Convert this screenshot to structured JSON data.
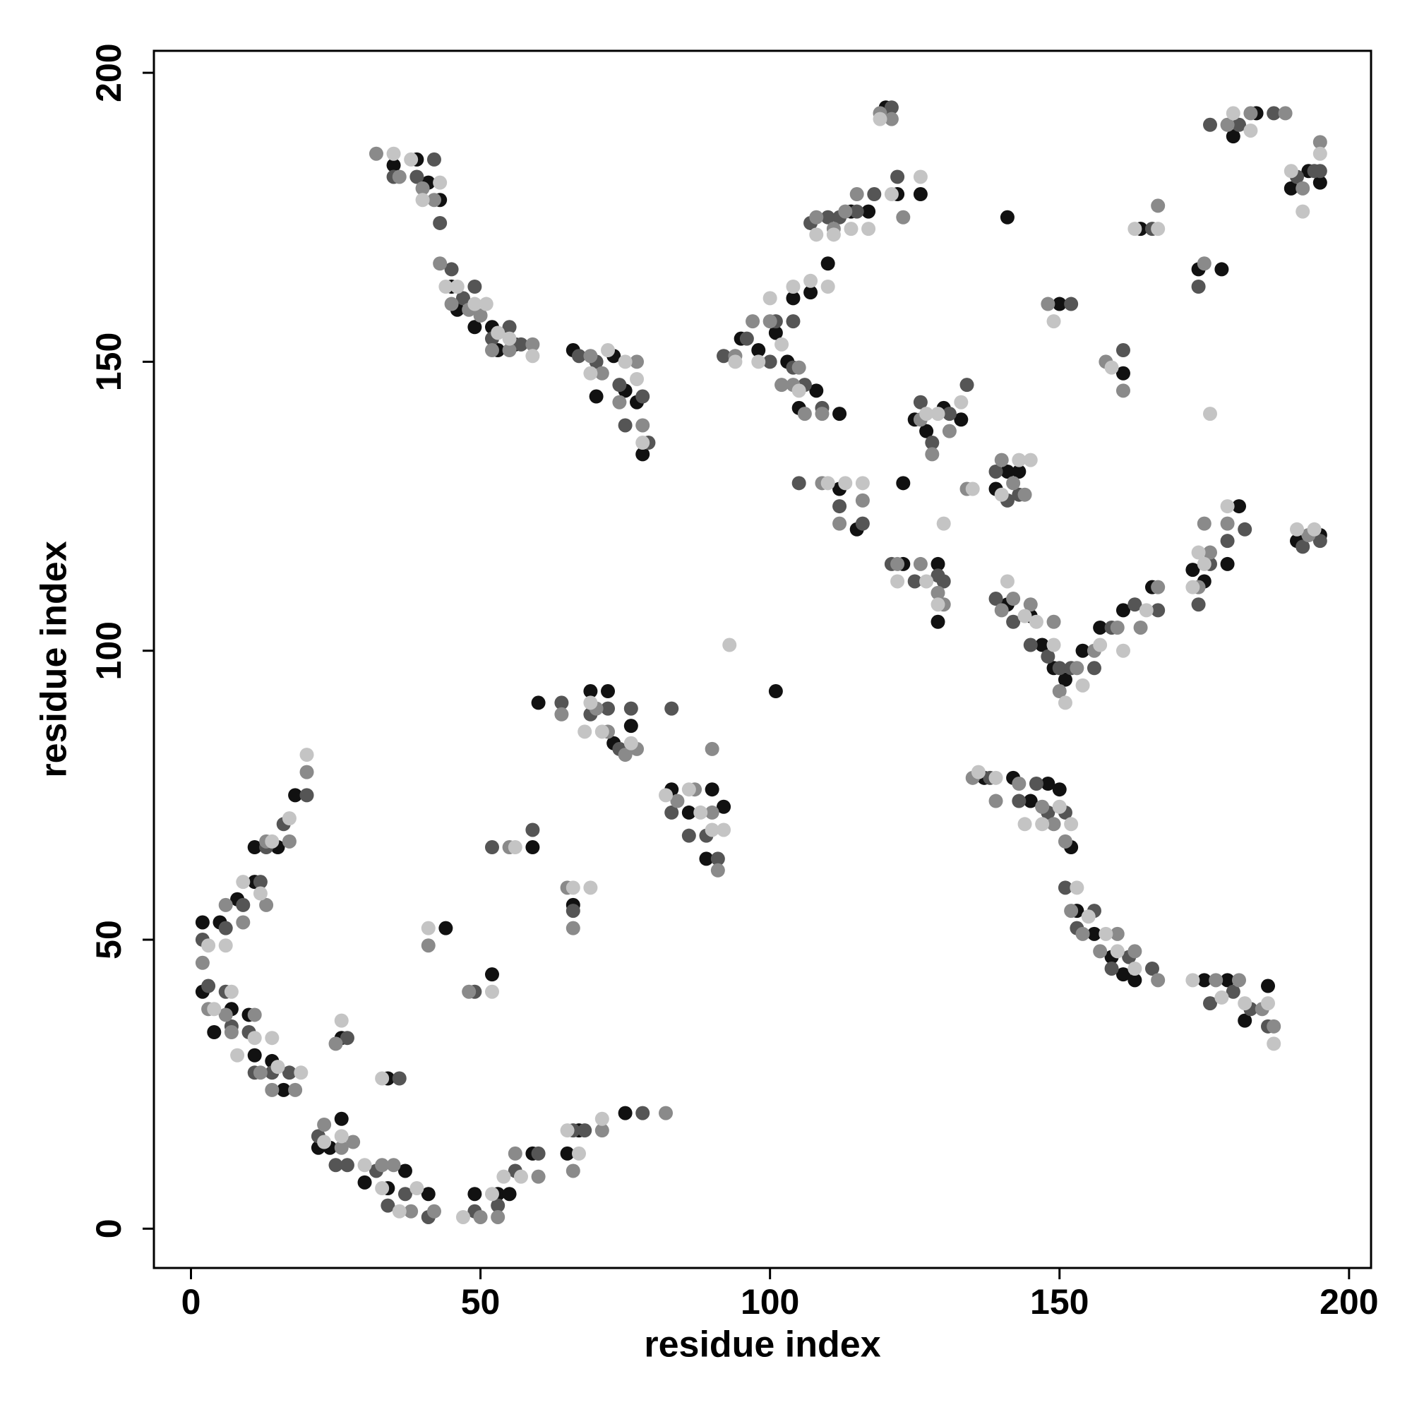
{
  "chart_data": {
    "type": "scatter",
    "xlabel": "residue index",
    "ylabel": "residue index",
    "xlim": [
      -6.4,
      203.8
    ],
    "ylim": [
      -6.8,
      203.8
    ],
    "xticks": [
      0,
      50,
      100,
      150,
      200
    ],
    "yticks": [
      0,
      50,
      100,
      150,
      200
    ],
    "series": [
      {
        "color": "#111111",
        "x": [
          2,
          5,
          8,
          11,
          11,
          15,
          18,
          2,
          4,
          7,
          10,
          11,
          14,
          16,
          22,
          24,
          26,
          30,
          34,
          37,
          41,
          49,
          53,
          55,
          59,
          65,
          67,
          75,
          26,
          34,
          44,
          52,
          59,
          66,
          60,
          69,
          72,
          73,
          76,
          83,
          86,
          89,
          90,
          92,
          101,
          95,
          98,
          101,
          103,
          104,
          105,
          107,
          108,
          110,
          112,
          114,
          117,
          120,
          122,
          126,
          112,
          115,
          123,
          123,
          129,
          129,
          125,
          127,
          130,
          133,
          139,
          141,
          143,
          141,
          141,
          145,
          147,
          149,
          151,
          154,
          157,
          161,
          166,
          173,
          175,
          179,
          181,
          191,
          195,
          150,
          161,
          164,
          174,
          178,
          180,
          184,
          190,
          193,
          195,
          35,
          39,
          41,
          43,
          45,
          46,
          49,
          52,
          53,
          56,
          66,
          70,
          73,
          75,
          77,
          78,
          137,
          142,
          145,
          148,
          150,
          152,
          153,
          156,
          159,
          161,
          163,
          175,
          179,
          182,
          186
        ],
        "values": [
          53,
          53,
          57,
          60,
          66,
          66,
          75,
          41,
          34,
          38,
          37,
          30,
          29,
          24,
          14,
          14,
          19,
          8,
          7,
          10,
          6,
          6,
          6,
          6,
          13,
          13,
          17,
          20,
          33,
          26,
          52,
          44,
          66,
          56,
          91,
          93,
          93,
          84,
          87,
          76,
          72,
          64,
          76,
          73,
          93,
          154,
          152,
          155,
          150,
          161,
          142,
          162,
          145,
          167,
          141,
          176,
          176,
          194,
          179,
          179,
          128,
          121,
          129,
          115,
          115,
          105,
          140,
          138,
          142,
          140,
          128,
          131,
          131,
          175,
          108,
          106,
          101,
          97,
          95,
          100,
          104,
          107,
          111,
          114,
          112,
          115,
          125,
          119,
          120,
          160,
          148,
          173,
          166,
          166,
          189,
          193,
          180,
          183,
          181,
          184,
          185,
          181,
          178,
          163,
          159,
          156,
          156,
          152,
          153,
          152,
          144,
          151,
          145,
          143,
          134,
          78,
          78,
          74,
          77,
          76,
          66,
          55,
          51,
          47,
          44,
          43,
          43,
          43,
          36,
          42
        ]
      },
      {
        "color": "#555555",
        "x": [
          2,
          6,
          9,
          12,
          13,
          16,
          20,
          3,
          6,
          7,
          10,
          11,
          14,
          17,
          22,
          25,
          27,
          32,
          34,
          37,
          41,
          49,
          53,
          56,
          60,
          66,
          68,
          78,
          27,
          36,
          49,
          52,
          59,
          66,
          64,
          69,
          72,
          74,
          76,
          83,
          86,
          89,
          91,
          83,
          92,
          96,
          100,
          101,
          104,
          104,
          106,
          107,
          109,
          110,
          112,
          115,
          118,
          121,
          122,
          105,
          112,
          116,
          121,
          125,
          129,
          130,
          126,
          128,
          131,
          134,
          139,
          141,
          143,
          139,
          142,
          145,
          148,
          150,
          152,
          156,
          159,
          163,
          167,
          174,
          176,
          179,
          182,
          192,
          195,
          152,
          161,
          166,
          174,
          176,
          181,
          187,
          191,
          194,
          195,
          35,
          39,
          42,
          43,
          45,
          47,
          49,
          52,
          55,
          57,
          67,
          70,
          74,
          75,
          78,
          79,
          138,
          143,
          146,
          148,
          151,
          151,
          153,
          156,
          159,
          162,
          166,
          176,
          180,
          183,
          186
        ],
        "values": [
          50,
          52,
          56,
          60,
          66,
          70,
          75,
          42,
          41,
          35,
          34,
          27,
          27,
          27,
          16,
          11,
          11,
          10,
          4,
          6,
          2,
          3,
          4,
          10,
          13,
          17,
          17,
          20,
          33,
          26,
          41,
          66,
          69,
          55,
          91,
          89,
          90,
          83,
          90,
          72,
          68,
          68,
          64,
          90,
          151,
          154,
          150,
          157,
          149,
          157,
          146,
          174,
          142,
          175,
          175,
          176,
          179,
          194,
          182,
          129,
          125,
          122,
          115,
          112,
          113,
          112,
          143,
          136,
          141,
          146,
          131,
          126,
          127,
          109,
          105,
          101,
          99,
          97,
          97,
          97,
          104,
          108,
          107,
          108,
          115,
          119,
          121,
          118,
          119,
          160,
          152,
          173,
          163,
          191,
          191,
          193,
          182,
          183,
          183,
          182,
          182,
          185,
          174,
          166,
          161,
          163,
          154,
          156,
          153,
          151,
          150,
          146,
          139,
          144,
          136,
          78,
          74,
          77,
          72,
          72,
          59,
          52,
          55,
          45,
          47,
          45,
          39,
          41,
          38,
          35
        ]
      },
      {
        "color": "#8a8a8a",
        "x": [
          2,
          6,
          9,
          13,
          13,
          17,
          20,
          3,
          6,
          7,
          11,
          12,
          14,
          18,
          23,
          26,
          28,
          33,
          35,
          38,
          42,
          50,
          53,
          56,
          60,
          66,
          71,
          82,
          25,
          41,
          48,
          55,
          65,
          66,
          64,
          70,
          72,
          75,
          77,
          84,
          87,
          90,
          91,
          90,
          94,
          97,
          100,
          102,
          104,
          105,
          106,
          108,
          109,
          111,
          113,
          115,
          119,
          121,
          123,
          109,
          112,
          116,
          122,
          126,
          129,
          130,
          126,
          128,
          131,
          134,
          140,
          142,
          144,
          140,
          142,
          145,
          149,
          150,
          153,
          156,
          160,
          164,
          167,
          174,
          176,
          179,
          175,
          193,
          148,
          158,
          161,
          167,
          175,
          179,
          183,
          189,
          192,
          195,
          32,
          36,
          40,
          42,
          43,
          45,
          48,
          50,
          52,
          55,
          59,
          69,
          71,
          74,
          77,
          78,
          135,
          139,
          143,
          147,
          149,
          151,
          152,
          154,
          157,
          160,
          163,
          167,
          177,
          181,
          185,
          187
        ],
        "values": [
          46,
          56,
          53,
          56,
          67,
          67,
          79,
          38,
          37,
          34,
          37,
          27,
          24,
          24,
          18,
          14,
          15,
          11,
          11,
          3,
          3,
          2,
          2,
          13,
          9,
          10,
          17,
          20,
          32,
          49,
          41,
          66,
          59,
          52,
          89,
          90,
          86,
          82,
          83,
          74,
          76,
          72,
          62,
          83,
          151,
          157,
          157,
          146,
          146,
          149,
          141,
          175,
          141,
          173,
          176,
          179,
          193,
          192,
          175,
          129,
          122,
          126,
          115,
          115,
          110,
          108,
          140,
          134,
          138,
          128,
          133,
          129,
          127,
          107,
          109,
          108,
          105,
          93,
          97,
          100,
          104,
          104,
          111,
          111,
          117,
          122,
          122,
          120,
          160,
          150,
          145,
          177,
          167,
          191,
          193,
          193,
          180,
          188,
          186,
          182,
          180,
          178,
          167,
          160,
          159,
          158,
          152,
          152,
          153,
          151,
          148,
          143,
          150,
          139,
          78,
          74,
          77,
          73,
          70,
          67,
          55,
          51,
          48,
          51,
          48,
          43,
          43,
          43,
          38,
          35
        ]
      },
      {
        "color": "#c4c4c4",
        "x": [
          3,
          6,
          9,
          12,
          14,
          17,
          20,
          4,
          7,
          8,
          11,
          14,
          15,
          19,
          23,
          26,
          30,
          33,
          36,
          39,
          47,
          52,
          54,
          57,
          65,
          67,
          71,
          26,
          33,
          41,
          52,
          56,
          66,
          69,
          69,
          68,
          71,
          76,
          82,
          86,
          88,
          90,
          92,
          93,
          94,
          98,
          100,
          102,
          104,
          105,
          107,
          108,
          110,
          111,
          114,
          117,
          119,
          121,
          126,
          110,
          113,
          116,
          122,
          127,
          129,
          130,
          127,
          129,
          133,
          135,
          140,
          143,
          145,
          141,
          144,
          146,
          149,
          151,
          154,
          157,
          161,
          165,
          173,
          175,
          174,
          179,
          191,
          194,
          149,
          159,
          163,
          167,
          176,
          180,
          183,
          190,
          192,
          195,
          35,
          38,
          40,
          43,
          44,
          46,
          49,
          51,
          53,
          55,
          59,
          69,
          72,
          75,
          77,
          78,
          136,
          139,
          144,
          147,
          150,
          152,
          153,
          155,
          158,
          160,
          163,
          173,
          178,
          182,
          186,
          187
        ],
        "values": [
          49,
          49,
          60,
          58,
          67,
          71,
          82,
          38,
          41,
          30,
          33,
          33,
          28,
          27,
          15,
          16,
          11,
          7,
          3,
          7,
          2,
          6,
          9,
          9,
          17,
          13,
          19,
          36,
          26,
          52,
          41,
          66,
          59,
          59,
          91,
          86,
          86,
          84,
          75,
          76,
          72,
          69,
          69,
          101,
          150,
          150,
          161,
          153,
          163,
          145,
          164,
          172,
          163,
          172,
          173,
          173,
          192,
          179,
          182,
          129,
          129,
          129,
          112,
          112,
          108,
          122,
          141,
          141,
          143,
          128,
          127,
          133,
          133,
          112,
          106,
          105,
          101,
          91,
          94,
          101,
          100,
          107,
          111,
          115,
          117,
          125,
          121,
          121,
          157,
          149,
          173,
          173,
          141,
          193,
          190,
          183,
          176,
          186,
          186,
          185,
          178,
          181,
          163,
          163,
          160,
          160,
          155,
          154,
          151,
          148,
          152,
          150,
          147,
          136,
          79,
          78,
          70,
          70,
          73,
          70,
          59,
          54,
          51,
          48,
          45,
          43,
          40,
          39,
          39,
          32
        ]
      }
    ]
  }
}
